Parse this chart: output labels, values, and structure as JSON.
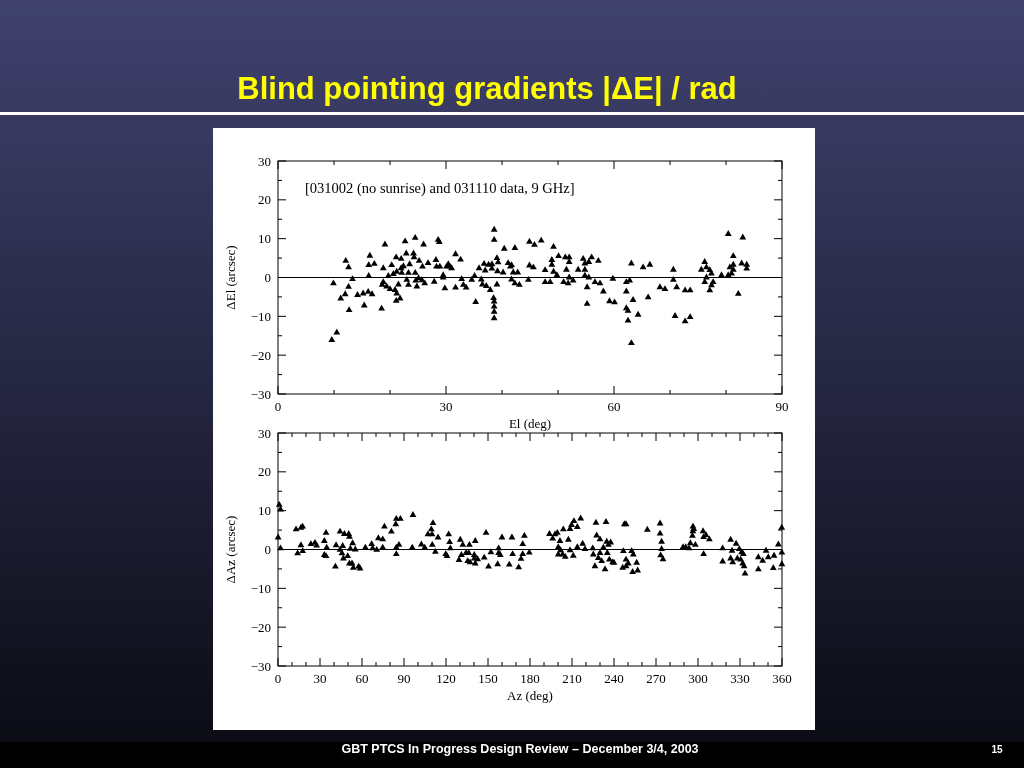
{
  "chart_data": [
    {
      "type": "scatter",
      "title": "Blind pointing gradients |ΔE| / rad",
      "xlabel": "El (deg)",
      "ylabel": "ΔEl (arcsec)",
      "annotations": [
        "[031002 (no sunrise) and 031110 data, 9 GHz]"
      ],
      "marker": "triangle",
      "color": "#000000",
      "xlim": [
        0,
        90
      ],
      "ylim": [
        -30,
        30
      ],
      "xticks": [
        0,
        {
          "value": 10,
          "label": null
        },
        {
          "value": 20,
          "label": null
        },
        30,
        {
          "value": 40,
          "label": null
        },
        {
          "value": 50,
          "label": null
        },
        60,
        {
          "value": 70,
          "label": null
        },
        {
          "value": 80,
          "label": null
        },
        90
      ],
      "yticks": [
        {
          "value": -30,
          "label": "−30"
        },
        {
          "value": -25,
          "label": null
        },
        {
          "value": -20,
          "label": "−20"
        },
        {
          "value": -15,
          "label": null
        },
        {
          "value": -10,
          "label": "−10"
        },
        {
          "value": -5,
          "label": null
        },
        0,
        {
          "value": 5,
          "label": null
        },
        10,
        {
          "value": 15,
          "label": null
        },
        20,
        {
          "value": 25,
          "label": null
        },
        30
      ],
      "ref_lines": [
        {
          "axis": "y",
          "value": 0
        }
      ],
      "x": [
        9.6,
        10.5,
        9.9,
        12.1,
        12.6,
        13.3,
        11.2,
        12,
        12.6,
        12.7,
        14.2,
        15.2,
        15.4,
        16.1,
        16.8,
        16.2,
        16.2,
        16.4,
        17.2,
        18.5,
        19.1,
        18.8,
        18.8,
        18.6,
        19.4,
        19.7,
        20.3,
        20,
        20.9,
        21.1,
        21.8,
        21.2,
        20.6,
        21.1,
        21.2,
        21.5,
        22,
        22,
        22.1,
        22.4,
        22.7,
        22.9,
        23,
        23.3,
        23.3,
        23.5,
        24.2,
        24.5,
        24.3,
        24.5,
        24.6,
        24.8,
        25.1,
        25.2,
        25.7,
        26,
        25.8,
        26.2,
        26.8,
        27.9,
        28.2,
        28.3,
        28.6,
        28.8,
        28.9,
        29.5,
        29.5,
        29.8,
        30.1,
        30.4,
        30.7,
        31,
        31.7,
        31.7,
        32.6,
        32.8,
        33.1,
        33.6,
        34.6,
        35.1,
        35.3,
        35.9,
        36.3,
        36.5,
        36.8,
        37,
        37.2,
        37.6,
        37.9,
        38.2,
        38.2,
        38.6,
        38.6,
        38.5,
        38.6,
        38.6,
        38.6,
        38.6,
        39.1,
        39.3,
        39.2,
        39.1,
        40.2,
        40.4,
        41.1,
        41.5,
        41.7,
        42.3,
        42,
        42.8,
        41.7,
        42.3,
        43.1,
        44.9,
        45.8,
        47,
        49.2,
        44.9,
        45.6,
        44.7,
        47.7,
        47.7,
        48.6,
        48.9,
        48.9,
        49.2,
        49.8,
        50.1,
        51,
        51.3,
        52,
        52,
        51.5,
        52,
        51.8,
        52.7,
        53.6,
        54.5,
        54.8,
        54.8,
        54.8,
        55.2,
        55.5,
        55.5,
        56,
        56.6,
        57.2,
        57.5,
        58.1,
        55.2,
        59.2,
        60.1,
        59.8,
        62.2,
        62.8,
        62.2,
        62.2,
        62.5,
        62.5,
        63.1,
        63.1,
        63.4,
        64.3,
        65.2,
        66.1,
        66.4,
        68.2,
        69.1,
        70.6,
        70.6,
        70.9,
        71.2,
        72.7,
        72.7,
        73.6,
        73.6,
        75.6,
        76.2,
        76.5,
        77.1,
        77.4,
        76.5,
        76.2,
        77.4,
        77.7,
        77.1,
        79.2,
        80.4,
        80.4,
        80.7,
        81,
        81.3,
        81.3,
        81.3,
        82.2,
        83,
        82.8,
        83.7,
        83.7
      ],
      "values": [
        -16.1,
        -14.2,
        -1.5,
        4.3,
        2.6,
        -0.4,
        -5.4,
        -4.3,
        -2.4,
        -8.4,
        -4.5,
        -4.1,
        -7.2,
        -3.7,
        -4.3,
        0.4,
        3.2,
        5.6,
        3.5,
        -8,
        8.5,
        2.4,
        -1.2,
        -1.9,
        -2.3,
        0.4,
        3.2,
        -3,
        -3.2,
        -6,
        -5.4,
        -4.1,
        0.9,
        5.2,
        1.5,
        -1.8,
        4.8,
        2.4,
        1.2,
        2.9,
        9.3,
        6.2,
        -0.6,
        1.2,
        -1.9,
        3.4,
        6.2,
        10.2,
        5.2,
        1.2,
        -0.8,
        -2.3,
        -0.2,
        4.3,
        -0.7,
        8.5,
        2.8,
        -1.5,
        3.7,
        -1.1,
        4.5,
        2.8,
        9.7,
        9.1,
        2.8,
        0.6,
        0,
        -2.8,
        2.8,
        3.4,
        2.8,
        2.4,
        6,
        -2.6,
        4.6,
        -0.4,
        -1.9,
        -2.6,
        -0.6,
        0.4,
        -6.3,
        2.4,
        -0.5,
        -1.8,
        3.5,
        1.8,
        -2.2,
        3.3,
        -3.2,
        3.4,
        2.3,
        12.3,
        9.7,
        -5.3,
        -6.2,
        -7.5,
        -8.8,
        -10.5,
        5,
        3.9,
        1.6,
        -1.8,
        1.3,
        7.4,
        3.7,
        2.8,
        3.2,
        7.6,
        1.3,
        1.3,
        -0.5,
        -1.5,
        -1.9,
        9.2,
        8.4,
        9.5,
        7.9,
        3.1,
        2.6,
        -0.6,
        1.9,
        -1.2,
        -1.2,
        4.5,
        3.3,
        1.5,
        0.6,
        5.5,
        -1.2,
        5.2,
        5.2,
        4,
        2,
        0,
        -1.5,
        -0.8,
        2,
        4.8,
        3.6,
        2,
        0.5,
        -2.5,
        0,
        4,
        5.2,
        -1.2,
        4.3,
        -1.5,
        -3.6,
        -6.8,
        -6.1,
        -6.4,
        -0.3,
        -1.2,
        -0.8,
        -3.6,
        -7.9,
        -8.6,
        -11.1,
        -16.9,
        3.6,
        -5.8,
        -9.6,
        2.6,
        -5.1,
        3.3,
        -2.5,
        -3,
        2,
        -0.6,
        -9.9,
        -2.5,
        -3.3,
        -11.3,
        -3.3,
        -10.2,
        2,
        4,
        2.6,
        1.9,
        1,
        0,
        -1.2,
        -2,
        -1.2,
        -3.3,
        0.6,
        11.2,
        0.6,
        2.6,
        1,
        5.5,
        3.3,
        2,
        -4.2,
        10.3,
        3.6,
        3.3,
        2.3
      ]
    },
    {
      "type": "scatter",
      "xlabel": "Az (deg)",
      "ylabel": "ΔAz (arcsec)",
      "annotations": [
        "GBT PTCS In Progress Design  Review – December 3/4, 2003",
        "15"
      ],
      "marker": "triangle",
      "color": "#000000",
      "xlim": [
        0,
        360
      ],
      "ylim": [
        -30,
        30
      ],
      "xticks": [
        0,
        {
          "value": 10,
          "label": null
        },
        {
          "value": 20,
          "label": null
        },
        30,
        {
          "value": 40,
          "label": null
        },
        {
          "value": 50,
          "label": null
        },
        60,
        {
          "value": 70,
          "label": null
        },
        {
          "value": 80,
          "label": null
        },
        90,
        {
          "value": 100,
          "label": null
        },
        {
          "value": 110,
          "label": null
        },
        120,
        {
          "value": 130,
          "label": null
        },
        {
          "value": 140,
          "label": null
        },
        150,
        {
          "value": 160,
          "label": null
        },
        {
          "value": 170,
          "label": null
        },
        180,
        {
          "value": 190,
          "label": null
        },
        {
          "value": 200,
          "label": null
        },
        210,
        {
          "value": 220,
          "label": null
        },
        {
          "value": 230,
          "label": null
        },
        240,
        {
          "value": 250,
          "label": null
        },
        {
          "value": 260,
          "label": null
        },
        270,
        {
          "value": 280,
          "label": null
        },
        {
          "value": 290,
          "label": null
        },
        300,
        {
          "value": 310,
          "label": null
        },
        {
          "value": 320,
          "label": null
        },
        330,
        {
          "value": 340,
          "label": null
        },
        {
          "value": 350,
          "label": null
        },
        360
      ],
      "yticks": [
        {
          "value": -30,
          "label": "−30"
        },
        {
          "value": -25,
          "label": null
        },
        {
          "value": -20,
          "label": "−20"
        },
        {
          "value": -15,
          "label": null
        },
        {
          "value": -10,
          "label": "−10"
        },
        {
          "value": -5,
          "label": null
        },
        0,
        {
          "value": 5,
          "label": null
        },
        10,
        {
          "value": 15,
          "label": null
        },
        20,
        {
          "value": 25,
          "label": null
        },
        30
      ],
      "ref_lines": [
        {
          "axis": "y",
          "value": 0
        }
      ],
      "x": [
        0.9,
        1.8,
        0.1,
        1.8,
        12.9,
        16.4,
        17.6,
        14,
        16.4,
        17.6,
        23.5,
        26.4,
        27.6,
        33.1,
        34.3,
        33.1,
        34.3,
        34.8,
        41,
        41.5,
        44.3,
        44.3,
        45.7,
        46.2,
        46.7,
        47.4,
        49.8,
        50.5,
        51,
        51.7,
        51,
        52.9,
        53.3,
        53.8,
        55.2,
        57.6,
        58.6,
        62.4,
        66.9,
        67.6,
        70.5,
        71.7,
        74.8,
        76,
        74.8,
        81,
        84.1,
        84.5,
        87.4,
        84.5,
        84.5,
        86.4,
        96.4,
        95.9,
        102.4,
        104.8,
        107.1,
        109.5,
        110,
        110.7,
        110.2,
        112.4,
        114.3,
        119.8,
        120.7,
        121.9,
        122.6,
        123.1,
        129.3,
        131,
        130.2,
        132,
        134.3,
        135.5,
        136.7,
        136.2,
        137.2,
        140.2,
        140.2,
        140.9,
        140.9,
        142.6,
        147.3,
        148.6,
        150.4,
        152.1,
        157.6,
        157.6,
        156.9,
        158.8,
        160,
        165.2,
        167.1,
        167.6,
        171.9,
        173.6,
        174.8,
        176,
        174.8,
        179.5,
        193.9,
        196.2,
        197.9,
        199.5,
        200.2,
        200.2,
        201.9,
        203.3,
        203.8,
        201.4,
        205.2,
        207.4,
        208.6,
        208.6,
        209.7,
        210.9,
        211.4,
        213.8,
        213.8,
        216.2,
        217.6,
        219.3,
        224.8,
        225.2,
        226.4,
        227.1,
        227.6,
        228.8,
        230,
        230,
        231.2,
        232.4,
        233.6,
        234.3,
        234.8,
        235.2,
        236,
        236.7,
        237.6,
        239,
        240,
        246.2,
        246.7,
        247.4,
        248.6,
        248.6,
        248.6,
        250.2,
        252.6,
        253.8,
        253.3,
        256.2,
        256.9,
        263.8,
        272.9,
        272.9,
        274,
        274,
        273.3,
        275,
        289.3,
        291.2,
        293.6,
        294.5,
        296,
        296.4,
        296.9,
        296.4,
        298.1,
        303.6,
        304,
        304,
        305.7,
        308.1,
        317.6,
        317.6,
        323.3,
        324.3,
        323.3,
        324.8,
        327.2,
        328.1,
        329.5,
        330.5,
        331.2,
        331.9,
        332.4,
        332.9,
        333.6,
        343.1,
        343.1,
        346.2,
        348.6,
        350.2,
        353.8,
        354.3,
        357.4,
        359.8,
        359.9,
        359.9
      ],
      "values": [
        11.5,
        10.3,
        3.1,
        0.3,
        5.2,
        5.6,
        5.9,
        -1,
        1.1,
        -0.4,
        1.4,
        1.7,
        1,
        2.2,
        4.3,
        -1.4,
        -1.7,
        0.5,
        -4.4,
        1.1,
        4.6,
        -0.1,
        -1,
        0.9,
        -2.3,
        4,
        -1.7,
        4,
        3.3,
        0.2,
        -3.6,
        -3.6,
        1.6,
        -4.7,
        0,
        -4.4,
        -4.9,
        0.5,
        1.4,
        0.3,
        -0.1,
        2.9,
        2.6,
        5.9,
        0.5,
        4.6,
        6.5,
        7.9,
        7.9,
        0.5,
        -1.2,
        1.2,
        8.9,
        0.5,
        1.3,
        0.5,
        3.9,
        5.2,
        3.9,
        6.8,
        1.2,
        -0.6,
        3.1,
        -1.2,
        -1.7,
        3.9,
        1.9,
        0.3,
        -2.7,
        -1.4,
        2.5,
        1.2,
        -0.9,
        -3,
        1.2,
        -0.9,
        -3.3,
        -1.4,
        -2.3,
        -3.6,
        2.2,
        -2.5,
        -2.1,
        4.3,
        -4.4,
        -0.7,
        0.3,
        -0.9,
        -3.8,
        -1.4,
        3.1,
        -3.9,
        3.1,
        -1.2,
        -4.6,
        -2.4,
        1.4,
        3.5,
        -1.2,
        -0.8,
        4,
        2.8,
        3.9,
        4.3,
        0.6,
        -1.3,
        -0.2,
        -1.3,
        5.2,
        2.2,
        -1.9,
        2.5,
        -0.2,
        5.3,
        6.3,
        -1.6,
        7.3,
        5.8,
        0.6,
        8,
        1.5,
        0.1,
        0.3,
        -1.3,
        -4.3,
        6.9,
        3.6,
        -2.2,
        2.6,
        -0.9,
        -3,
        0.5,
        -5.1,
        7.1,
        2,
        -0.9,
        1.2,
        -2.6,
        1.8,
        -3.3,
        -3.4,
        -4.7,
        -0.4,
        6.5,
        6.5,
        -2.6,
        -4.3,
        -3.6,
        -0.4,
        -1.3,
        -5.8,
        -3.4,
        -5.4,
        5.1,
        6.7,
        4.1,
        2,
        0.1,
        -1.5,
        -2.5,
        0.6,
        0.6,
        0.3,
        1.6,
        3.5,
        5.9,
        5.3,
        4.7,
        1.2,
        4.7,
        3.2,
        -1.2,
        3.7,
        2.6,
        0.3,
        -3.1,
        2.5,
        -0.3,
        -2.3,
        -3.3,
        1.5,
        -2.3,
        0.1,
        -2.6,
        -0.7,
        -3.6,
        -1.2,
        -4.3,
        -6.2,
        -2,
        -5.1,
        -2.9,
        -0.3,
        -2,
        -4.8,
        -1.6,
        1.3,
        5.6,
        -0.8,
        -3.8
      ]
    }
  ]
}
